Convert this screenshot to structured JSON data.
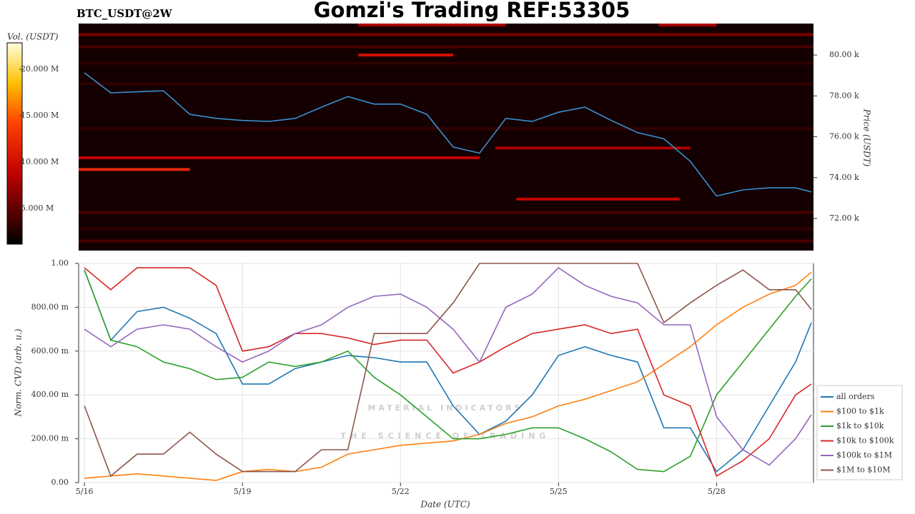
{
  "title": "Gomzi's Trading REF:53305",
  "chart_data": [
    {
      "type": "heatmap",
      "subtitle": "BTC_USDT@2W",
      "y_label": "Price (USDT)",
      "colorbar_label": "Vol. (USDT)",
      "x": [
        0,
        0.5,
        1,
        1.5,
        2,
        2.5,
        3,
        3.5,
        4,
        4.5,
        5,
        5.5,
        6,
        6.5,
        7,
        7.5,
        8,
        8.5,
        9,
        9.5,
        10,
        10.5,
        11,
        11.5,
        12,
        12.5,
        13,
        13.5,
        13.8
      ],
      "xlim": [
        -0.11,
        13.84
      ],
      "ylim": [
        70430,
        81540
      ],
      "yticks": [
        {
          "value": 72000,
          "label": "72.00 k"
        },
        {
          "value": 74000,
          "label": "74.00 k"
        },
        {
          "value": 76000,
          "label": "76.00 k"
        },
        {
          "value": 78000,
          "label": "78.00 k"
        },
        {
          "value": 80000,
          "label": "80.00 k"
        }
      ],
      "series": [
        {
          "color": "#3a8fd0",
          "values": [
            79130,
            78150,
            78200,
            78250,
            77100,
            76900,
            76800,
            76750,
            76900,
            77450,
            77970,
            77600,
            77600,
            77100,
            75500,
            75200,
            76900,
            76750,
            77200,
            77450,
            76800,
            76200,
            75900,
            74800,
            73100,
            73400,
            73500,
            73500,
            73300
          ]
        }
      ],
      "clim": [
        1.15,
        22.85
      ],
      "cticks": [
        {
          "value": 5,
          "label": "5.000 M"
        },
        {
          "value": 10,
          "label": "10.000 M"
        },
        {
          "value": 15,
          "label": "15.000 M"
        },
        {
          "value": 20,
          "label": "20.000 M"
        }
      ],
      "bands": [
        {
          "price": 74970,
          "start": -0.11,
          "end": 7.5,
          "volume": 9
        },
        {
          "price": 74400,
          "start": -0.11,
          "end": 2.0,
          "volume": 12
        },
        {
          "price": 80000,
          "start": 5.2,
          "end": 7.0,
          "volume": 10
        },
        {
          "price": 81470,
          "start": 5.2,
          "end": 8.0,
          "volume": 8
        },
        {
          "price": 81470,
          "start": 10.9,
          "end": 12.0,
          "volume": 8
        },
        {
          "price": 81000,
          "start": -0.11,
          "end": 13.84,
          "volume": 6
        },
        {
          "price": 75450,
          "start": 7.8,
          "end": 11.5,
          "volume": 8
        },
        {
          "price": 72950,
          "start": 8.2,
          "end": 11.3,
          "volume": 9
        },
        {
          "price": 80400,
          "start": -0.11,
          "end": 13.84,
          "volume": 4
        },
        {
          "price": 79600,
          "start": -0.11,
          "end": 13.84,
          "volume": 3
        },
        {
          "price": 78600,
          "start": -0.11,
          "end": 13.84,
          "volume": 3
        },
        {
          "price": 76400,
          "start": -0.11,
          "end": 13.84,
          "volume": 3
        },
        {
          "price": 72300,
          "start": -0.11,
          "end": 13.84,
          "volume": 4
        },
        {
          "price": 71500,
          "start": -0.11,
          "end": 13.84,
          "volume": 3
        },
        {
          "price": 70900,
          "start": -0.11,
          "end": 13.84,
          "volume": 4
        }
      ]
    },
    {
      "type": "line",
      "x_label": "Date (UTC)",
      "y_label": "Norm. CVD (arb. u.)",
      "grid": true,
      "legend": "right",
      "watermark": [
        "MATERIAL INDICATORS",
        "THE SCIENCE OF TRADING"
      ],
      "x": [
        0,
        0.5,
        1,
        1.5,
        2,
        2.5,
        3,
        3.5,
        4,
        4.5,
        5,
        5.5,
        6,
        6.5,
        7,
        7.5,
        8,
        8.5,
        9,
        9.5,
        10,
        10.5,
        11,
        11.5,
        12,
        12.5,
        13,
        13.5,
        13.8
      ],
      "xlim": [
        -0.11,
        13.84
      ],
      "xticks": [
        {
          "value": 0,
          "label": "5/16"
        },
        {
          "value": 3,
          "label": "5/19"
        },
        {
          "value": 6,
          "label": "5/22"
        },
        {
          "value": 9,
          "label": "5/25"
        },
        {
          "value": 12,
          "label": "5/28"
        }
      ],
      "ylim": [
        0,
        1
      ],
      "yticks": [
        {
          "value": 0,
          "label": "0.00"
        },
        {
          "value": 0.2,
          "label": "200.00 m"
        },
        {
          "value": 0.4,
          "label": "400.00 m"
        },
        {
          "value": 0.6,
          "label": "600.00 m"
        },
        {
          "value": 0.8,
          "label": "800.00 m"
        },
        {
          "value": 1,
          "label": "1.00"
        }
      ],
      "series": [
        {
          "name": "all orders",
          "color": "#1f77b4",
          "values": [
            0.97,
            0.65,
            0.78,
            0.8,
            0.75,
            0.68,
            0.45,
            0.45,
            0.52,
            0.55,
            0.58,
            0.57,
            0.55,
            0.55,
            0.35,
            0.22,
            0.28,
            0.4,
            0.58,
            0.62,
            0.58,
            0.55,
            0.25,
            0.25,
            0.05,
            0.15,
            0.35,
            0.55,
            0.73
          ]
        },
        {
          "name": "$100 to $1k",
          "color": "#ff7f0e",
          "values": [
            0.02,
            0.03,
            0.04,
            0.03,
            0.02,
            0.01,
            0.05,
            0.06,
            0.05,
            0.07,
            0.13,
            0.15,
            0.17,
            0.18,
            0.19,
            0.22,
            0.27,
            0.3,
            0.35,
            0.38,
            0.42,
            0.46,
            0.54,
            0.62,
            0.72,
            0.8,
            0.86,
            0.9,
            0.96
          ]
        },
        {
          "name": "$1k to $10k",
          "color": "#2ca02c",
          "values": [
            0.97,
            0.65,
            0.62,
            0.55,
            0.52,
            0.47,
            0.48,
            0.55,
            0.53,
            0.55,
            0.6,
            0.48,
            0.4,
            0.3,
            0.2,
            0.2,
            0.22,
            0.25,
            0.25,
            0.2,
            0.14,
            0.06,
            0.05,
            0.12,
            0.4,
            0.55,
            0.7,
            0.85,
            0.93
          ]
        },
        {
          "name": "$10k to $100k",
          "color": "#d62728",
          "values": [
            0.98,
            0.88,
            0.98,
            0.98,
            0.98,
            0.9,
            0.6,
            0.62,
            0.68,
            0.68,
            0.66,
            0.63,
            0.65,
            0.65,
            0.5,
            0.55,
            0.62,
            0.68,
            0.7,
            0.72,
            0.68,
            0.7,
            0.4,
            0.35,
            0.03,
            0.1,
            0.2,
            0.4,
            0.45
          ]
        },
        {
          "name": "$100k to $1M",
          "color": "#9467bd",
          "values": [
            0.7,
            0.62,
            0.7,
            0.72,
            0.7,
            0.62,
            0.55,
            0.6,
            0.68,
            0.72,
            0.8,
            0.85,
            0.86,
            0.8,
            0.7,
            0.55,
            0.8,
            0.86,
            0.98,
            0.9,
            0.85,
            0.82,
            0.72,
            0.72,
            0.3,
            0.15,
            0.08,
            0.2,
            0.31
          ]
        },
        {
          "name": "$1M to $10M",
          "color": "#8c564b",
          "values": [
            0.35,
            0.03,
            0.13,
            0.13,
            0.23,
            0.13,
            0.05,
            0.05,
            0.05,
            0.15,
            0.15,
            0.68,
            0.68,
            0.68,
            0.82,
            1.0,
            1.0,
            1.0,
            1.0,
            1.0,
            1.0,
            1.0,
            0.73,
            0.82,
            0.9,
            0.97,
            0.88,
            0.88,
            0.79
          ]
        }
      ]
    }
  ]
}
